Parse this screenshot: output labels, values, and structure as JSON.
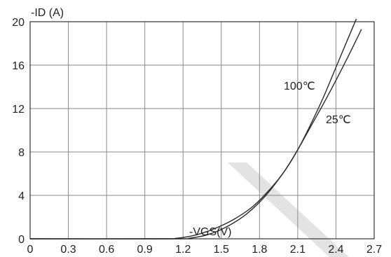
{
  "chart_data": {
    "type": "line",
    "x_ticks": [
      "0",
      "0.3",
      "0.6",
      "0.9",
      "1.2",
      "1.5",
      "1.8",
      "2.1",
      "2.4",
      "2.7"
    ],
    "y_ticks": [
      "0",
      "4",
      "8",
      "12",
      "16",
      "20"
    ],
    "xlim": [
      0,
      2.7
    ],
    "ylim": [
      0,
      20
    ],
    "xlabel": "-VGS(V)",
    "ylabel": "-ID (A)",
    "grid": true,
    "series": [
      {
        "name": "100℃",
        "x": [
          0,
          1.0,
          1.15,
          1.3,
          1.45,
          1.6,
          1.75,
          1.9,
          2.0,
          2.1,
          2.2,
          2.3,
          2.4,
          2.5,
          2.56
        ],
        "y": [
          0,
          0,
          0.05,
          0.35,
          0.95,
          1.8,
          3.0,
          4.8,
          6.3,
          8.2,
          10.5,
          13.0,
          15.8,
          18.6,
          20.4
        ]
      },
      {
        "name": "25℃",
        "x": [
          0,
          1.15,
          1.25,
          1.4,
          1.55,
          1.7,
          1.85,
          2.0,
          2.1,
          2.2,
          2.3,
          2.4,
          2.5,
          2.6
        ],
        "y": [
          0,
          0,
          0.05,
          0.4,
          1.15,
          2.3,
          4.0,
          6.3,
          8.2,
          10.3,
          12.4,
          14.6,
          16.9,
          19.3
        ]
      }
    ]
  }
}
